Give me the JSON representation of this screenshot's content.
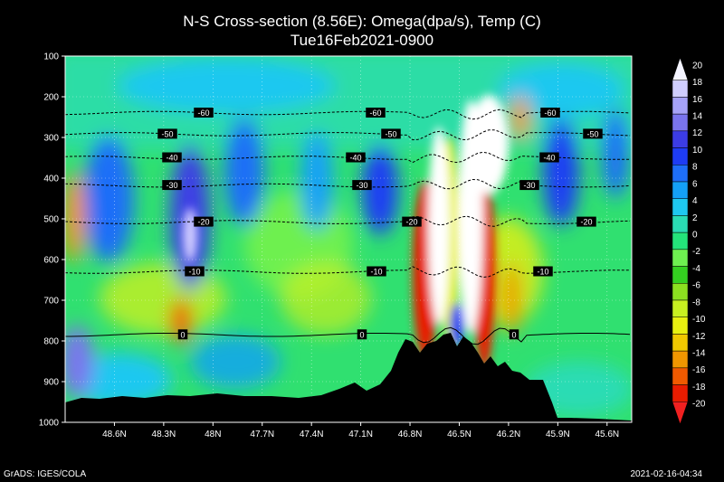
{
  "title": "N-S Cross-section (8.56E): Omega(dpa/s), Temp (C)",
  "subtitle": "Tue16Feb2021-0900",
  "footer_left": "GrADS: IGES/COLA",
  "footer_right": "2021-02-16-04:34",
  "chart_data": {
    "type": "heatmap",
    "title": "N-S Cross-section (8.56E): Omega(dpa/s), Temp (C)",
    "subtitle": "Tue16Feb2021-0900",
    "x_ticks": [
      "48.6N",
      "48.3N",
      "48N",
      "47.7N",
      "47.4N",
      "47.1N",
      "46.8N",
      "46.5N",
      "46.2N",
      "45.9N",
      "45.6N"
    ],
    "x_tick_values": [
      48.6,
      48.3,
      48.0,
      47.7,
      47.4,
      47.1,
      46.8,
      46.5,
      46.2,
      45.9,
      45.6
    ],
    "xlim": [
      48.9,
      45.45
    ],
    "y_ticks": [
      "100",
      "200",
      "300",
      "400",
      "500",
      "600",
      "700",
      "800",
      "900",
      "1000"
    ],
    "y_tick_values": [
      100,
      200,
      300,
      400,
      500,
      600,
      700,
      800,
      900,
      1000
    ],
    "ylim": [
      100,
      1000
    ],
    "colorbar": {
      "labels": [
        "20",
        "18",
        "16",
        "14",
        "12",
        "10",
        "8",
        "6",
        "4",
        "2",
        "0",
        "-2",
        "-4",
        "-6",
        "-8",
        "-10",
        "-12",
        "-14",
        "-16",
        "-18",
        "-20"
      ],
      "colors": [
        "#f4f4ff",
        "#d0ceff",
        "#a6a2f8",
        "#7a74ee",
        "#3c3ce6",
        "#1e3cf4",
        "#1e6ef8",
        "#14a0f8",
        "#1ec8f0",
        "#2adcb4",
        "#24e47a",
        "#6ef050",
        "#34d020",
        "#8ce020",
        "#c8f020",
        "#e8f010",
        "#f0c800",
        "#f09600",
        "#f05a00",
        "#e81c00",
        "#f02020"
      ]
    },
    "temperature_contours": [
      {
        "label": "-60",
        "pressure": 240
      },
      {
        "label": "-50",
        "pressure": 292
      },
      {
        "label": "-40",
        "pressure": 350
      },
      {
        "label": "-30",
        "pressure": 418
      },
      {
        "label": "-20",
        "pressure": 508
      },
      {
        "label": "-10",
        "pressure": 630
      },
      {
        "label": "0",
        "pressure": 785
      }
    ],
    "omega_features": [
      {
        "lat": 48.45,
        "p": 470,
        "value": 12
      },
      {
        "lat": 48.05,
        "p": 520,
        "value": 18
      },
      {
        "lat": 47.55,
        "p": 400,
        "value": 12
      },
      {
        "lat": 47.05,
        "p": 440,
        "value": 12
      },
      {
        "lat": 46.55,
        "p": 420,
        "value": 20
      },
      {
        "lat": 46.35,
        "p": 320,
        "value": 20
      },
      {
        "lat": 46.65,
        "p": 560,
        "value": -20
      },
      {
        "lat": 46.4,
        "p": 640,
        "value": -20
      },
      {
        "lat": 48.85,
        "p": 450,
        "value": -14
      },
      {
        "lat": 48.0,
        "p": 770,
        "value": -20
      },
      {
        "lat": 46.15,
        "p": 220,
        "value": -16
      },
      {
        "lat": 45.75,
        "p": 420,
        "value": 14
      }
    ]
  }
}
